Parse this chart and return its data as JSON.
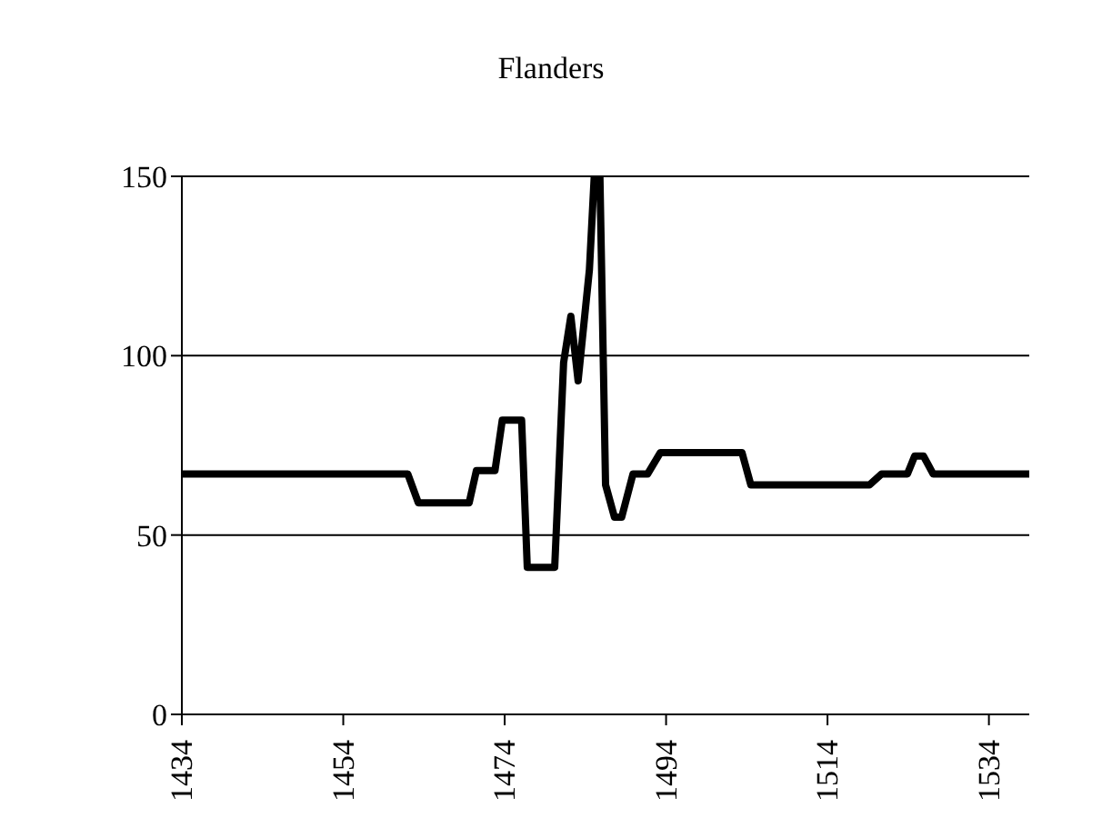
{
  "chart_data": {
    "type": "line",
    "title": "Flanders",
    "x": [
      1434,
      1462,
      1463.3,
      1469.6,
      1470.5,
      1472.8,
      1473.7,
      1476.1,
      1476.8,
      1480.2,
      1481.3,
      1482.2,
      1483.1,
      1484.5,
      1485.1,
      1485.8,
      1486.5,
      1487.6,
      1488.5,
      1489.9,
      1491.7,
      1493.3,
      1503.4,
      1504.5,
      1519.2,
      1520.7,
      1523.9,
      1524.8,
      1525.9,
      1527.1,
      1539
    ],
    "series": [
      {
        "color": "#000000",
        "values": [
          67,
          67,
          59,
          59,
          68,
          68,
          82,
          82,
          41,
          41,
          98,
          111,
          93,
          124,
          150,
          150,
          64,
          55,
          55,
          67,
          67,
          73,
          73,
          64,
          64,
          67,
          67,
          72,
          72,
          67,
          67
        ]
      }
    ],
    "xlim": [
      1434,
      1539
    ],
    "xticks": [
      1434,
      1454,
      1474,
      1494,
      1514,
      1534
    ],
    "ylim": [
      0,
      150
    ],
    "yticks": [
      0,
      50,
      100,
      150
    ],
    "grid": "y",
    "legend": false,
    "marker": "none",
    "line_style": "solid"
  }
}
